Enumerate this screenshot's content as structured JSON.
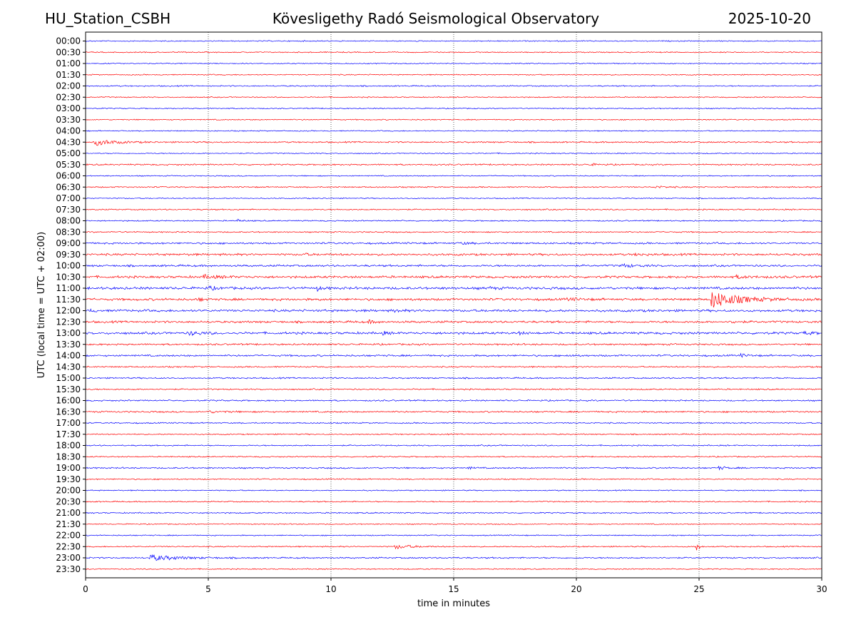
{
  "header": {
    "station": "HU_Station_CSBH",
    "observatory": "Kövesligethy Radó Seismological Observatory",
    "date": "2025-10-20"
  },
  "chart_data": {
    "type": "line",
    "title": "Kövesligethy Radó Seismological Observatory",
    "xlabel": "time in minutes",
    "ylabel": "UTC (local time = UTC + 02:00)",
    "xlim": [
      0,
      30
    ],
    "x_ticks": [
      "0",
      "5",
      "10",
      "15",
      "20",
      "25",
      "30"
    ],
    "grid": "vertical dotted lines at every 5 minutes",
    "row_labels": [
      "00:00",
      "00:30",
      "01:00",
      "01:30",
      "02:00",
      "02:30",
      "03:00",
      "03:30",
      "04:00",
      "04:30",
      "05:00",
      "05:30",
      "06:00",
      "06:30",
      "07:00",
      "07:30",
      "08:00",
      "08:30",
      "09:00",
      "09:30",
      "10:00",
      "10:30",
      "11:00",
      "11:30",
      "12:00",
      "12:30",
      "13:00",
      "13:30",
      "14:00",
      "14:30",
      "15:00",
      "15:30",
      "16:00",
      "16:30",
      "17:00",
      "17:30",
      "18:00",
      "18:30",
      "19:00",
      "19:30",
      "20:00",
      "20:30",
      "21:00",
      "21:30",
      "22:00",
      "22:30",
      "23:00",
      "23:30"
    ],
    "colors": {
      "even_rows": "#0000ff",
      "odd_rows": "#ff0000"
    },
    "noise_levels": [
      0.6,
      0.6,
      0.6,
      0.6,
      0.7,
      0.6,
      0.6,
      0.6,
      0.6,
      0.8,
      0.6,
      0.8,
      0.6,
      0.7,
      0.6,
      0.7,
      0.7,
      0.7,
      1.0,
      1.2,
      1.1,
      1.3,
      1.4,
      1.3,
      1.3,
      1.2,
      1.3,
      1.0,
      1.0,
      0.8,
      0.8,
      0.8,
      0.8,
      0.9,
      0.7,
      0.7,
      0.7,
      0.7,
      0.8,
      0.7,
      0.6,
      0.7,
      0.7,
      0.6,
      0.6,
      0.7,
      0.8,
      0.6
    ],
    "events": [
      {
        "row": "04:30",
        "minute": 0.35,
        "amplitude": 4.5,
        "duration": 1.2
      },
      {
        "row": "05:30",
        "minute": 20.5,
        "amplitude": 1.5,
        "duration": 0.5
      },
      {
        "row": "06:30",
        "minute": 23.2,
        "amplitude": 1.5,
        "duration": 0.8
      },
      {
        "row": "08:00",
        "minute": 6.2,
        "amplitude": 2.0,
        "duration": 0.3
      },
      {
        "row": "09:00",
        "minute": 15.3,
        "amplitude": 1.5,
        "duration": 0.5
      },
      {
        "row": "09:30",
        "minute": 8.8,
        "amplitude": 1.5,
        "duration": 0.4
      },
      {
        "row": "09:30",
        "minute": 22.4,
        "amplitude": 1.5,
        "duration": 0.6
      },
      {
        "row": "10:00",
        "minute": 21.8,
        "amplitude": 2.5,
        "duration": 0.8
      },
      {
        "row": "10:30",
        "minute": 4.8,
        "amplitude": 2.0,
        "duration": 1.0
      },
      {
        "row": "10:30",
        "minute": 26.5,
        "amplitude": 1.5,
        "duration": 1.0
      },
      {
        "row": "11:00",
        "minute": 5.0,
        "amplitude": 2.0,
        "duration": 0.5
      },
      {
        "row": "11:00",
        "minute": 9.4,
        "amplitude": 3.5,
        "duration": 0.3
      },
      {
        "row": "11:00",
        "minute": 16.4,
        "amplitude": 2.0,
        "duration": 0.3
      },
      {
        "row": "11:30",
        "minute": 25.5,
        "amplitude": 12.0,
        "duration": 1.6
      },
      {
        "row": "11:30",
        "minute": 4.6,
        "amplitude": 2.0,
        "duration": 0.3
      },
      {
        "row": "11:30",
        "minute": 19.6,
        "amplitude": 1.5,
        "duration": 0.8
      },
      {
        "row": "12:00",
        "minute": 0.2,
        "amplitude": 2.0,
        "duration": 0.3
      },
      {
        "row": "12:00",
        "minute": 12.6,
        "amplitude": 2.0,
        "duration": 0.3
      },
      {
        "row": "12:30",
        "minute": 11.5,
        "amplitude": 2.0,
        "duration": 0.4
      },
      {
        "row": "12:30",
        "minute": 26.3,
        "amplitude": 2.0,
        "duration": 0.4
      },
      {
        "row": "13:00",
        "minute": 4.2,
        "amplitude": 2.5,
        "duration": 0.8
      },
      {
        "row": "13:00",
        "minute": 12.1,
        "amplitude": 2.0,
        "duration": 0.3
      },
      {
        "row": "13:00",
        "minute": 17.6,
        "amplitude": 2.0,
        "duration": 0.3
      },
      {
        "row": "13:00",
        "minute": 29.2,
        "amplitude": 2.0,
        "duration": 0.6
      },
      {
        "row": "14:00",
        "minute": 19.6,
        "amplitude": 2.0,
        "duration": 0.3
      },
      {
        "row": "14:00",
        "minute": 26.7,
        "amplitude": 2.0,
        "duration": 0.4
      },
      {
        "row": "16:30",
        "minute": 5.0,
        "amplitude": 1.2,
        "duration": 1.0
      },
      {
        "row": "19:00",
        "minute": 15.6,
        "amplitude": 1.5,
        "duration": 0.3
      },
      {
        "row": "19:00",
        "minute": 25.8,
        "amplitude": 2.0,
        "duration": 0.5
      },
      {
        "row": "22:30",
        "minute": 12.6,
        "amplitude": 3.0,
        "duration": 1.0
      },
      {
        "row": "22:30",
        "minute": 24.9,
        "amplitude": 7.0,
        "duration": 0.15
      },
      {
        "row": "23:00",
        "minute": 2.6,
        "amplitude": 4.0,
        "duration": 1.8
      }
    ]
  }
}
